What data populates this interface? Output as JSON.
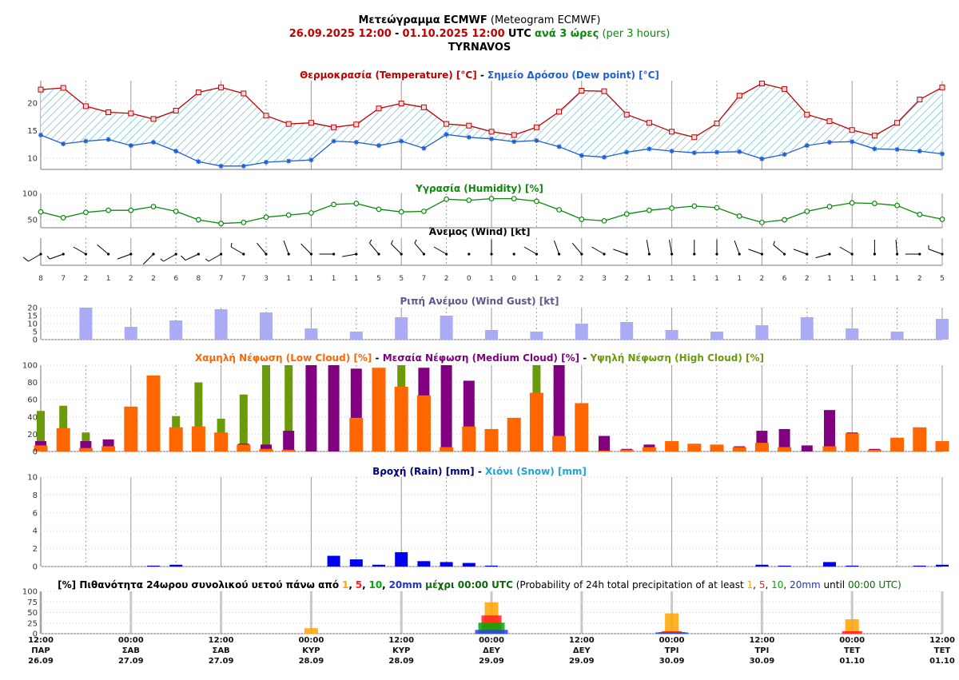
{
  "header": {
    "title_greek": "Μετεώγραμμα ECMWF",
    "title_english": "(Meteogram ECMWF)",
    "date_start": "26.09.2025 12:00",
    "dash": "-",
    "date_end": "01.10.2025 12:00",
    "utc": "UTC",
    "step_greek": "ανά 3 ώρες",
    "step_english": "(per 3 hours)",
    "location": "TYRNAVOS"
  },
  "panels": {
    "temperature": {
      "t1": "Θερμοκρασία (Temperature) [°C]",
      "sep": "-",
      "t2": "Σημείο Δρόσου (Dew point) [°C]",
      "c1": "#c00000",
      "c2": "#1f5fd6"
    },
    "humidity": {
      "t1": "Υγρασία (Humidity) [%]",
      "c1": "#0a8a0a"
    },
    "wind": {
      "t1": "Άνεμος (Wind) [kt]",
      "c1": "#000000"
    },
    "gust": {
      "t1": "Ριπή Ανέμου (Wind Gust) [kt]",
      "c1": "#5a5a8a"
    },
    "cloud": {
      "t1": "Χαμηλή Νέφωση (Low Cloud) [%]",
      "t2": "Μεσαία Νέφωση (Medium Cloud) [%]",
      "t3": "Υψηλή Νέφωση (High Cloud) [%]",
      "sep": "-",
      "c1": "#ff6600",
      "c2": "#800080",
      "c3": "#6b9a0a"
    },
    "rain": {
      "t1": "Βροχή (Rain) [mm]",
      "sep": "-",
      "t2": "Χιόνι (Snow) [mm]",
      "c1": "#00007f",
      "c2": "#19a7d9"
    },
    "probability": {
      "prefix": "[%] Πιθανότητα 24ωρου συνολικού υετού πάνω από",
      "v1": "1",
      "c_a": ",",
      "v2": "5",
      "c_b": ",",
      "v3": "10",
      "c_c": ",",
      "v4": "20mm",
      "until": "μέχρι 00:00 UTC",
      "en_prefix": "(Probability of 24h total precipitation of at least",
      "e1": "1",
      "e_a": ",",
      "e2": "5",
      "e_b": ",",
      "e3": "10",
      "e_c": ",",
      "e4": "20mm",
      "en_until": "until",
      "en_time": "00:00 UTC)"
    }
  },
  "chart_data": [
    {
      "type": "line",
      "name": "temperature",
      "title": "Θερμοκρασία (Temperature) [°C] - Σημείο Δρόσου (Dew point) [°C]",
      "ylim": [
        8,
        24
      ],
      "yticks": [
        10,
        15,
        20
      ],
      "series": [
        {
          "name": "Θερμοκρασία (Temperature) [°C]",
          "color": "#c00000",
          "values": [
            22.4,
            22.7,
            19.4,
            18.3,
            18.1,
            17.1,
            18.6,
            21.9,
            22.8,
            21.7,
            17.7,
            16.2,
            16.4,
            15.6,
            16.1,
            19.0,
            19.9,
            19.2,
            16.2,
            15.9,
            14.8,
            14.2,
            15.6,
            18.4,
            22.2,
            22.1,
            17.9,
            16.4,
            14.8,
            13.8,
            16.3,
            21.3,
            23.5,
            22.5,
            17.9,
            16.7,
            15.1,
            14.1,
            16.4,
            20.6,
            22.8
          ]
        },
        {
          "name": "Σημείο Δρόσου (Dew point) [°C]",
          "color": "#1f5fd6",
          "values": [
            14.2,
            12.6,
            13.1,
            13.4,
            12.3,
            12.9,
            11.3,
            9.4,
            8.6,
            8.6,
            9.3,
            9.5,
            9.7,
            13.1,
            12.9,
            12.3,
            13.1,
            11.8,
            14.3,
            13.8,
            13.5,
            13.0,
            13.2,
            12.1,
            10.5,
            10.2,
            11.1,
            11.7,
            11.3,
            11.0,
            11.1,
            11.2,
            9.9,
            10.7,
            12.3,
            12.9,
            13.0,
            11.7,
            11.6,
            11.3,
            10.8
          ]
        }
      ]
    },
    {
      "type": "line",
      "name": "humidity",
      "title": "Υγρασία (Humidity) [%]",
      "ylim": [
        35,
        100
      ],
      "yticks": [
        50,
        100
      ],
      "series": [
        {
          "name": "Υγρασία (Humidity) [%]",
          "color": "#0a8a0a",
          "values": [
            65,
            54,
            64,
            68,
            68,
            75,
            66,
            50,
            43,
            45,
            55,
            59,
            63,
            79,
            81,
            70,
            65,
            66,
            89,
            87,
            90,
            90,
            85,
            69,
            51,
            48,
            61,
            68,
            72,
            76,
            73,
            57,
            45,
            50,
            66,
            75,
            82,
            81,
            77,
            60,
            51
          ]
        }
      ]
    },
    {
      "type": "scatter",
      "name": "wind",
      "title": "Άνεμος (Wind) [kt]",
      "speeds_kt": [
        8,
        7,
        2,
        1,
        2,
        2,
        6,
        8,
        7,
        7,
        3,
        1,
        1,
        1,
        1,
        5,
        5,
        7,
        2,
        0,
        1,
        0,
        1,
        2,
        2,
        3,
        2,
        1,
        1,
        1,
        1,
        1,
        2,
        6,
        2,
        1,
        1,
        1,
        1,
        2,
        5
      ],
      "direction_deg": [
        240,
        250,
        300,
        310,
        250,
        225,
        240,
        245,
        240,
        300,
        320,
        340,
        315,
        270,
        260,
        320,
        315,
        320,
        300,
        0,
        0,
        0,
        300,
        340,
        320,
        300,
        290,
        350,
        350,
        0,
        0,
        340,
        290,
        310,
        290,
        255,
        300,
        0,
        355,
        270,
        290
      ]
    },
    {
      "type": "bar",
      "name": "gust",
      "title": "Ριπή Ανέμου (Wind Gust) [kt]",
      "ylim": [
        0,
        20
      ],
      "yticks": [
        0,
        5,
        10,
        15,
        20
      ],
      "x_index": [
        2,
        4,
        6,
        8,
        10,
        12,
        14,
        16,
        18,
        20,
        22,
        24,
        26,
        28,
        30,
        32,
        34,
        36,
        38,
        40
      ],
      "values": [
        20,
        8,
        12,
        19,
        17,
        7,
        5,
        14,
        15,
        6,
        5,
        10,
        11,
        6,
        5,
        9,
        14,
        7,
        5,
        13
      ],
      "color": "#aaaaf5"
    },
    {
      "type": "bar",
      "name": "cloud",
      "title": "Χαμηλή Νέφωση (Low Cloud) [%] - Μεσαία Νέφωση (Medium Cloud) [%] - Υψηλή Νέφωση (High Cloud) [%]",
      "ylim": [
        0,
        100
      ],
      "yticks": [
        0,
        20,
        40,
        60,
        80,
        100
      ],
      "series": [
        {
          "name": "Υψηλή Νέφωση (High Cloud) [%]",
          "color": "#6b9a0a",
          "values": [
            47,
            53,
            22,
            0,
            0,
            0,
            41,
            80,
            38,
            66,
            100,
            100,
            0,
            0,
            0,
            0,
            100,
            0,
            0,
            0,
            0,
            0,
            100,
            0,
            0,
            0,
            0,
            0,
            0,
            0,
            0,
            0,
            0,
            0,
            0,
            0,
            0,
            0,
            0,
            0,
            0
          ]
        },
        {
          "name": "Μεσαία Νέφωση (Medium Cloud) [%]",
          "color": "#800080",
          "values": [
            12,
            0,
            12,
            14,
            0,
            0,
            0,
            0,
            0,
            9,
            8,
            24,
            100,
            100,
            96,
            0,
            0,
            97,
            100,
            82,
            0,
            0,
            0,
            100,
            0,
            18,
            3,
            8,
            0,
            0,
            0,
            6,
            24,
            26,
            7,
            48,
            22,
            3,
            0,
            0,
            0
          ]
        },
        {
          "name": "Χαμηλή Νέφωση (Low Cloud) [%]",
          "color": "#ff6600",
          "values": [
            7,
            27,
            4,
            6,
            52,
            88,
            28,
            29,
            22,
            8,
            3,
            2,
            0,
            0,
            39,
            97,
            75,
            65,
            5,
            29,
            26,
            39,
            68,
            18,
            56,
            1,
            2,
            5,
            12,
            9,
            8,
            5,
            10,
            5,
            0,
            6,
            21,
            2,
            16,
            28,
            12
          ]
        }
      ]
    },
    {
      "type": "bar",
      "name": "rain",
      "title": "Βροχή (Rain) [mm] - Χιόνι (Snow) [mm]",
      "ylim": [
        0,
        10
      ],
      "yticks": [
        0,
        2,
        4,
        6,
        8,
        10
      ],
      "series": [
        {
          "name": "Βροχή (Rain) [mm]",
          "color": "#0000ee",
          "values": [
            0,
            0,
            0,
            0,
            0,
            0.1,
            0.2,
            0,
            0,
            0,
            0,
            0,
            0,
            1.2,
            0.8,
            0.2,
            1.6,
            0.6,
            0.5,
            0.4,
            0.1,
            0,
            0,
            0,
            0,
            0,
            0,
            0,
            0,
            0,
            0,
            0,
            0.2,
            0.1,
            0,
            0.5,
            0.1,
            0,
            0,
            0.1,
            0.2
          ]
        },
        {
          "name": "Χιόνι (Snow) [mm]",
          "color": "#19a7d9",
          "values": [
            0,
            0,
            0,
            0,
            0,
            0,
            0,
            0,
            0,
            0,
            0,
            0,
            0,
            0,
            0,
            0,
            0,
            0,
            0,
            0,
            0,
            0,
            0,
            0,
            0,
            0,
            0,
            0,
            0,
            0,
            0,
            0,
            0,
            0,
            0,
            0,
            0,
            0,
            0,
            0,
            0
          ]
        }
      ]
    },
    {
      "type": "bar",
      "name": "probability",
      "title": "[%] Πιθανότητα 24ωρου συνολικού υετού πάνω από 1, 5, 10, 20mm μέχρι 00:00 UTC",
      "ylim": [
        0,
        100
      ],
      "yticks": [
        0,
        25,
        50,
        75,
        100
      ],
      "x_index": [
        12,
        20,
        28,
        36
      ],
      "categories": [
        "00:00 ΚΥΡ 28.09",
        "00:00 ΔΕΥ 29.09",
        "00:00 ΤΡΙ 30.09",
        "00:00 ΤΕΤ 01.10"
      ],
      "series": [
        {
          "name": "1",
          "color": "#ffa500",
          "values": [
            12,
            73,
            47,
            33
          ]
        },
        {
          "name": "5",
          "color": "#ff2020",
          "values": [
            0,
            42,
            5,
            5
          ]
        },
        {
          "name": "10",
          "color": "#00b000",
          "values": [
            0,
            25,
            3,
            0
          ]
        },
        {
          "name": "20mm",
          "color": "#3344dd",
          "values": [
            0,
            8,
            2,
            0
          ]
        }
      ]
    }
  ],
  "x_axis": {
    "start": "26.09.2025 12:00",
    "step_hours": 3,
    "points": 41,
    "labels": [
      {
        "i": 0,
        "time": "12:00",
        "day": "ΠΑΡ",
        "date": "26.09"
      },
      {
        "i": 4,
        "time": "00:00",
        "day": "ΣΑΒ",
        "date": "27.09"
      },
      {
        "i": 8,
        "time": "12:00",
        "day": "ΣΑΒ",
        "date": "27.09"
      },
      {
        "i": 12,
        "time": "00:00",
        "day": "ΚΥΡ",
        "date": "28.09"
      },
      {
        "i": 16,
        "time": "12:00",
        "day": "ΚΥΡ",
        "date": "28.09"
      },
      {
        "i": 20,
        "time": "00:00",
        "day": "ΔΕΥ",
        "date": "29.09"
      },
      {
        "i": 24,
        "time": "12:00",
        "day": "ΔΕΥ",
        "date": "29.09"
      },
      {
        "i": 28,
        "time": "00:00",
        "day": "ΤΡΙ",
        "date": "30.09"
      },
      {
        "i": 32,
        "time": "12:00",
        "day": "ΤΡΙ",
        "date": "30.09"
      },
      {
        "i": 36,
        "time": "00:00",
        "day": "ΤΕΤ",
        "date": "01.10"
      },
      {
        "i": 40,
        "time": "12:00",
        "day": "ΤΕΤ",
        "date": "01.10"
      }
    ]
  }
}
